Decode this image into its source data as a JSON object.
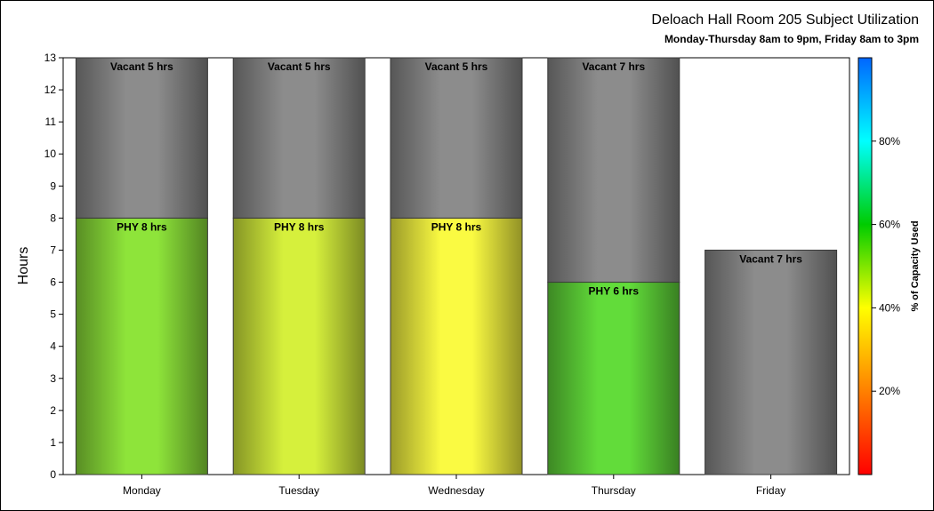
{
  "chart_data": {
    "type": "bar",
    "stacked": true,
    "title": "Deloach Hall Room 205 Subject Utilization",
    "subtitle": "Monday-Thursday 8am to 9pm, Friday 8am to 3pm",
    "ylabel": "Hours",
    "xlabel": "",
    "ylim": [
      0,
      13
    ],
    "yticks": [
      0,
      1,
      2,
      3,
      4,
      5,
      6,
      7,
      8,
      9,
      10,
      11,
      12,
      13
    ],
    "categories": [
      "Monday",
      "Tuesday",
      "Wednesday",
      "Thursday",
      "Friday"
    ],
    "bars": [
      {
        "category": "Monday",
        "segments": [
          {
            "label": "PHY 8 hrs",
            "value": 8,
            "color": "#8ee43a"
          },
          {
            "label": "Vacant 5 hrs",
            "value": 5,
            "color": "#8c8c8c"
          }
        ]
      },
      {
        "category": "Tuesday",
        "segments": [
          {
            "label": "PHY 8 hrs",
            "value": 8,
            "color": "#d6f03c"
          },
          {
            "label": "Vacant 5 hrs",
            "value": 5,
            "color": "#8c8c8c"
          }
        ]
      },
      {
        "category": "Wednesday",
        "segments": [
          {
            "label": "PHY 8 hrs",
            "value": 8,
            "color": "#fafa42"
          },
          {
            "label": "Vacant 5 hrs",
            "value": 5,
            "color": "#8c8c8c"
          }
        ]
      },
      {
        "category": "Thursday",
        "segments": [
          {
            "label": "PHY 6 hrs",
            "value": 6,
            "color": "#62dc3a"
          },
          {
            "label": "Vacant 7 hrs",
            "value": 7,
            "color": "#8c8c8c"
          }
        ]
      },
      {
        "category": "Friday",
        "segments": [
          {
            "label": "Vacant 7 hrs",
            "value": 7,
            "color": "#8c8c8c"
          }
        ]
      }
    ],
    "colorbar": {
      "title": "% of Capacity Used",
      "range": [
        0,
        100
      ],
      "ticks": [
        {
          "value": 20,
          "label": "20%"
        },
        {
          "value": 40,
          "label": "40%"
        },
        {
          "value": 60,
          "label": "60%"
        },
        {
          "value": 80,
          "label": "80%"
        }
      ],
      "stops": [
        "#ff0000",
        "#ff8000",
        "#ffff00",
        "#00cc00",
        "#00ffff",
        "#0066ff"
      ]
    },
    "grid": false,
    "legend": "colorbar-right"
  }
}
